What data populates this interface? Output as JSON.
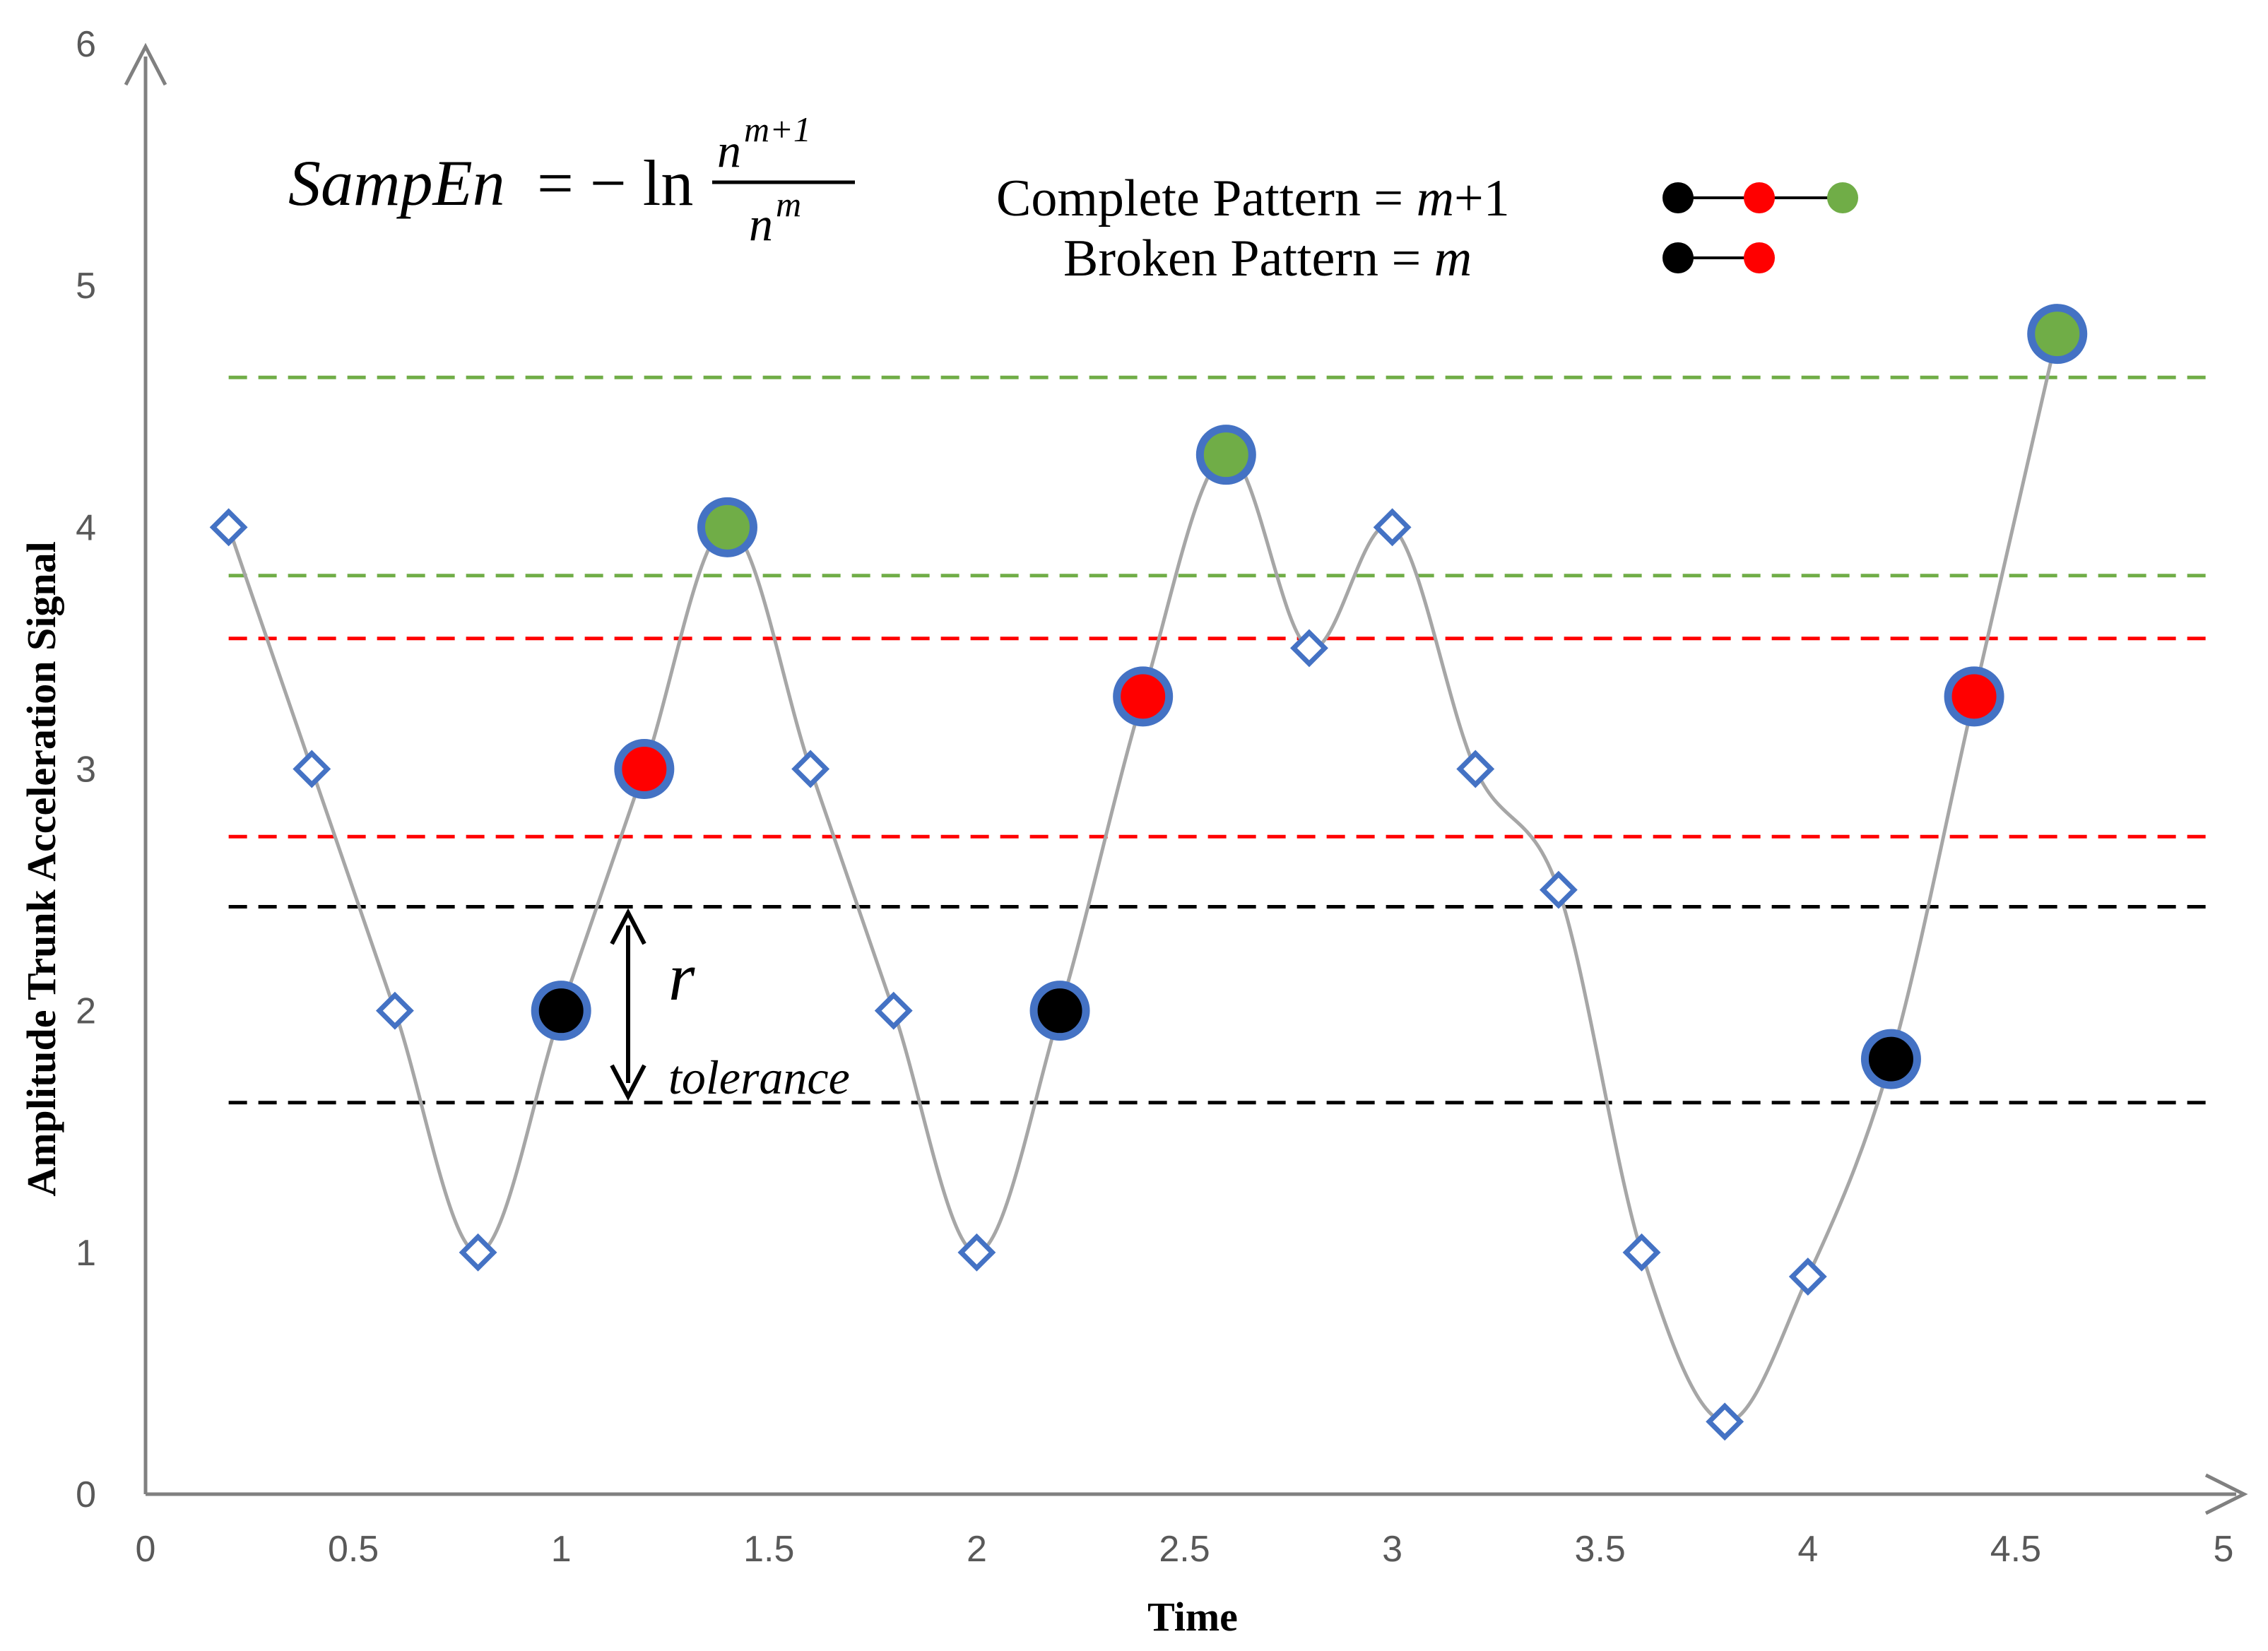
{
  "chart_data": {
    "type": "line",
    "xlabel": "Time",
    "ylabel": "Amplitude Trunk Acceleration Signal",
    "xlim": [
      0,
      5
    ],
    "ylim": [
      0,
      6
    ],
    "x_ticks": [
      "0",
      "0.5",
      "1",
      "1.5",
      "2",
      "2.5",
      "3",
      "3.5",
      "4",
      "4.5",
      "5"
    ],
    "y_ticks": [
      "0",
      "1",
      "2",
      "3",
      "4",
      "5",
      "6"
    ],
    "grid": false,
    "series": [
      {
        "x": [
          0.2,
          0.4,
          0.6,
          0.8,
          1.0,
          1.2,
          1.4,
          1.6,
          1.8,
          2.0,
          2.2,
          2.4,
          2.6,
          2.8,
          3.0,
          3.2,
          3.4,
          3.6,
          3.8,
          4.0,
          4.2,
          4.4,
          4.6
        ],
        "y": [
          4.0,
          3.0,
          2.0,
          1.0,
          2.0,
          3.0,
          4.0,
          3.0,
          2.0,
          1.0,
          2.0,
          3.3,
          4.3,
          3.5,
          4.0,
          3.0,
          2.5,
          1.0,
          0.3,
          0.9,
          1.8,
          3.3,
          4.8
        ],
        "markers": [
          "diamond",
          "diamond",
          "diamond",
          "diamond",
          "black",
          "red",
          "green",
          "diamond",
          "diamond",
          "diamond",
          "black",
          "red",
          "green",
          "diamond",
          "diamond",
          "diamond",
          "diamond",
          "diamond",
          "diamond",
          "diamond",
          "black",
          "red",
          "green"
        ]
      }
    ],
    "tolerance_bands": [
      {
        "color": "green",
        "lower": 3.8,
        "upper": 4.62
      },
      {
        "color": "red",
        "lower": 2.72,
        "upper": 3.54
      },
      {
        "color": "black",
        "lower": 1.62,
        "upper": 2.43
      }
    ],
    "annotations": {
      "r_label": "r",
      "tolerance_label": "tolerance",
      "formula_lhs": "SampEn",
      "formula_eq": "= − ln",
      "formula_numerator": "n",
      "formula_numerator_sup": "m+1",
      "formula_denominator": "n",
      "formula_denominator_sup": "m",
      "legend_complete_text": "Complete Pattern = ",
      "legend_complete_var": "m",
      "legend_complete_suffix": "+1",
      "legend_broken_text": "Broken Pattern = ",
      "legend_broken_var": "m"
    }
  },
  "colors": {
    "line": "#a6a6a6",
    "axis": "#808080",
    "diamond": "#4472c4",
    "marker_ring": "#4472c4",
    "black": "#000000",
    "red": "#ff0000",
    "green": "#70ad47",
    "band_green": "#70ad47",
    "band_red": "#ff0000",
    "band_black": "#000000"
  }
}
